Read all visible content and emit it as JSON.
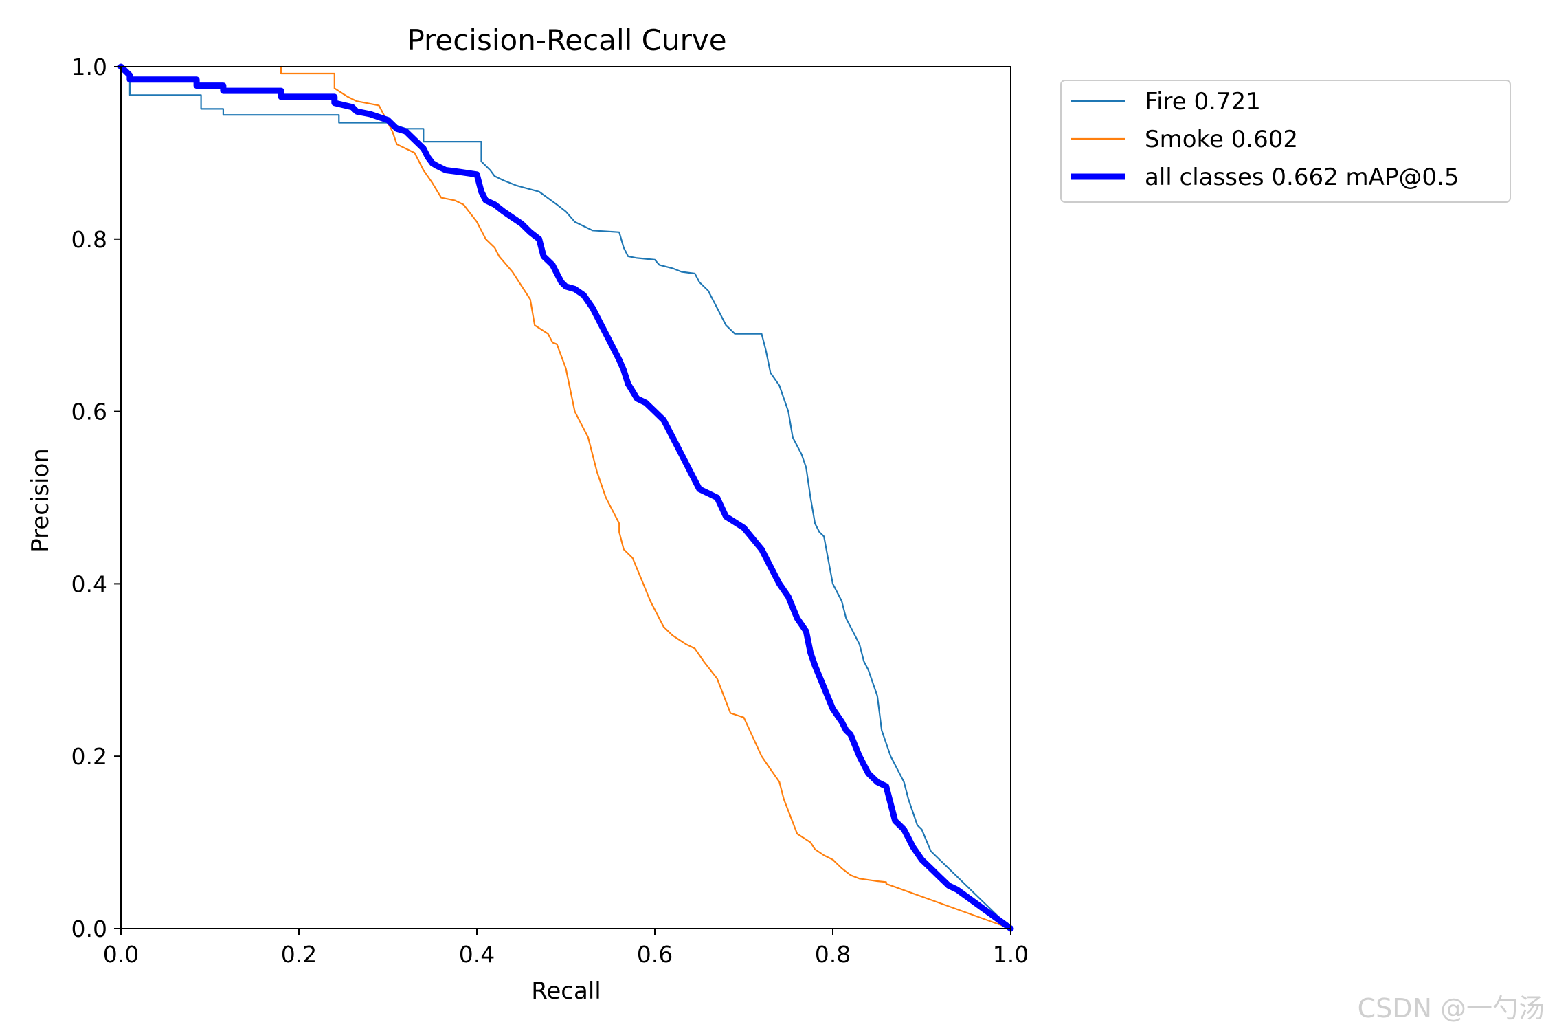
{
  "chart_data": {
    "type": "line",
    "title": "Precision-Recall Curve",
    "xlabel": "Recall",
    "ylabel": "Precision",
    "xlim": [
      0,
      1
    ],
    "ylim": [
      0,
      1
    ],
    "xticks": [
      "0.0",
      "0.2",
      "0.4",
      "0.6",
      "0.8",
      "1.0"
    ],
    "yticks": [
      "0.0",
      "0.2",
      "0.4",
      "0.6",
      "0.8",
      "1.0"
    ],
    "legend_position": "outside-top-right",
    "series": [
      {
        "name": "Fire 0.721",
        "color": "#1f77b4",
        "width": "thin",
        "x": [
          0,
          0.01,
          0.01,
          0.09,
          0.09,
          0.115,
          0.115,
          0.245,
          0.245,
          0.3,
          0.32,
          0.34,
          0.34,
          0.405,
          0.405,
          0.415,
          0.42,
          0.43,
          0.445,
          0.47,
          0.49,
          0.5,
          0.51,
          0.52,
          0.53,
          0.56,
          0.565,
          0.57,
          0.58,
          0.6,
          0.605,
          0.62,
          0.63,
          0.645,
          0.65,
          0.66,
          0.665,
          0.67,
          0.68,
          0.69,
          0.72,
          0.725,
          0.73,
          0.74,
          0.75,
          0.755,
          0.76,
          0.765,
          0.77,
          0.775,
          0.78,
          0.785,
          0.79,
          0.8,
          0.81,
          0.815,
          0.82,
          0.83,
          0.835,
          0.84,
          0.85,
          0.855,
          0.865,
          0.87,
          0.875,
          0.88,
          0.885,
          0.895,
          0.9,
          0.91,
          0.915,
          0.925,
          0.93,
          0.935,
          1.0
        ],
        "y": [
          1.0,
          0.99,
          0.967,
          0.967,
          0.951,
          0.951,
          0.944,
          0.944,
          0.935,
          0.935,
          0.928,
          0.928,
          0.913,
          0.913,
          0.89,
          0.88,
          0.873,
          0.868,
          0.862,
          0.855,
          0.84,
          0.832,
          0.82,
          0.815,
          0.81,
          0.808,
          0.79,
          0.78,
          0.778,
          0.776,
          0.77,
          0.766,
          0.762,
          0.76,
          0.75,
          0.74,
          0.73,
          0.72,
          0.7,
          0.69,
          0.69,
          0.67,
          0.645,
          0.63,
          0.6,
          0.57,
          0.56,
          0.55,
          0.535,
          0.5,
          0.47,
          0.46,
          0.455,
          0.4,
          0.38,
          0.36,
          0.35,
          0.33,
          0.31,
          0.3,
          0.27,
          0.23,
          0.2,
          0.19,
          0.18,
          0.17,
          0.15,
          0.12,
          0.115,
          0.09,
          0.085,
          0.075,
          0.07,
          0.065,
          0.0
        ]
      },
      {
        "name": "Smoke 0.602",
        "color": "#ff7f0e",
        "width": "thin",
        "x": [
          0.18,
          0.18,
          0.24,
          0.24,
          0.255,
          0.265,
          0.29,
          0.3,
          0.305,
          0.31,
          0.33,
          0.34,
          0.35,
          0.35,
          0.36,
          0.375,
          0.385,
          0.4,
          0.41,
          0.42,
          0.425,
          0.44,
          0.46,
          0.465,
          0.48,
          0.485,
          0.49,
          0.5,
          0.51,
          0.525,
          0.535,
          0.545,
          0.56,
          0.56,
          0.565,
          0.575,
          0.585,
          0.595,
          0.61,
          0.62,
          0.635,
          0.645,
          0.655,
          0.67,
          0.685,
          0.7,
          0.72,
          0.73,
          0.74,
          0.745,
          0.76,
          0.775,
          0.78,
          0.79,
          0.8,
          0.805,
          0.81,
          0.82,
          0.83,
          0.85,
          0.86,
          0.86,
          1.0
        ],
        "y": [
          1.0,
          0.992,
          0.992,
          0.975,
          0.965,
          0.96,
          0.955,
          0.935,
          0.925,
          0.91,
          0.9,
          0.88,
          0.865,
          0.865,
          0.848,
          0.845,
          0.84,
          0.82,
          0.8,
          0.79,
          0.78,
          0.762,
          0.73,
          0.7,
          0.69,
          0.68,
          0.678,
          0.65,
          0.6,
          0.57,
          0.53,
          0.5,
          0.47,
          0.46,
          0.44,
          0.43,
          0.405,
          0.38,
          0.35,
          0.34,
          0.33,
          0.325,
          0.31,
          0.29,
          0.25,
          0.245,
          0.2,
          0.185,
          0.17,
          0.15,
          0.11,
          0.1,
          0.092,
          0.085,
          0.08,
          0.075,
          0.07,
          0.062,
          0.058,
          0.055,
          0.054,
          0.052,
          0.0
        ]
      },
      {
        "name": "all classes 0.662 mAP@0.5",
        "color": "#0000ff",
        "width": "thick",
        "x": [
          0,
          0.01,
          0.01,
          0.085,
          0.085,
          0.115,
          0.115,
          0.18,
          0.18,
          0.24,
          0.24,
          0.26,
          0.265,
          0.28,
          0.3,
          0.31,
          0.32,
          0.33,
          0.34,
          0.345,
          0.35,
          0.355,
          0.365,
          0.38,
          0.4,
          0.405,
          0.41,
          0.42,
          0.43,
          0.44,
          0.45,
          0.46,
          0.47,
          0.475,
          0.485,
          0.49,
          0.495,
          0.5,
          0.51,
          0.52,
          0.53,
          0.54,
          0.55,
          0.56,
          0.565,
          0.57,
          0.58,
          0.59,
          0.6,
          0.61,
          0.62,
          0.63,
          0.64,
          0.645,
          0.65,
          0.66,
          0.67,
          0.68,
          0.7,
          0.72,
          0.73,
          0.74,
          0.75,
          0.76,
          0.77,
          0.775,
          0.78,
          0.79,
          0.8,
          0.81,
          0.815,
          0.82,
          0.83,
          0.84,
          0.85,
          0.86,
          0.87,
          0.875,
          0.88,
          0.885,
          0.89,
          0.9,
          0.91,
          0.92,
          0.93,
          0.94,
          1.0
        ],
        "y": [
          1.0,
          0.99,
          0.985,
          0.985,
          0.978,
          0.978,
          0.972,
          0.972,
          0.965,
          0.965,
          0.958,
          0.953,
          0.948,
          0.945,
          0.938,
          0.928,
          0.925,
          0.915,
          0.905,
          0.895,
          0.888,
          0.885,
          0.88,
          0.878,
          0.875,
          0.855,
          0.845,
          0.84,
          0.832,
          0.825,
          0.818,
          0.808,
          0.8,
          0.78,
          0.77,
          0.76,
          0.75,
          0.745,
          0.742,
          0.735,
          0.72,
          0.7,
          0.68,
          0.66,
          0.648,
          0.632,
          0.615,
          0.61,
          0.6,
          0.59,
          0.57,
          0.55,
          0.53,
          0.52,
          0.51,
          0.505,
          0.5,
          0.478,
          0.465,
          0.44,
          0.42,
          0.4,
          0.385,
          0.36,
          0.345,
          0.32,
          0.305,
          0.28,
          0.255,
          0.24,
          0.23,
          0.225,
          0.2,
          0.18,
          0.17,
          0.165,
          0.125,
          0.12,
          0.115,
          0.105,
          0.095,
          0.08,
          0.07,
          0.06,
          0.05,
          0.045,
          0.0
        ]
      }
    ]
  },
  "watermark": "CSDN @一勺汤"
}
